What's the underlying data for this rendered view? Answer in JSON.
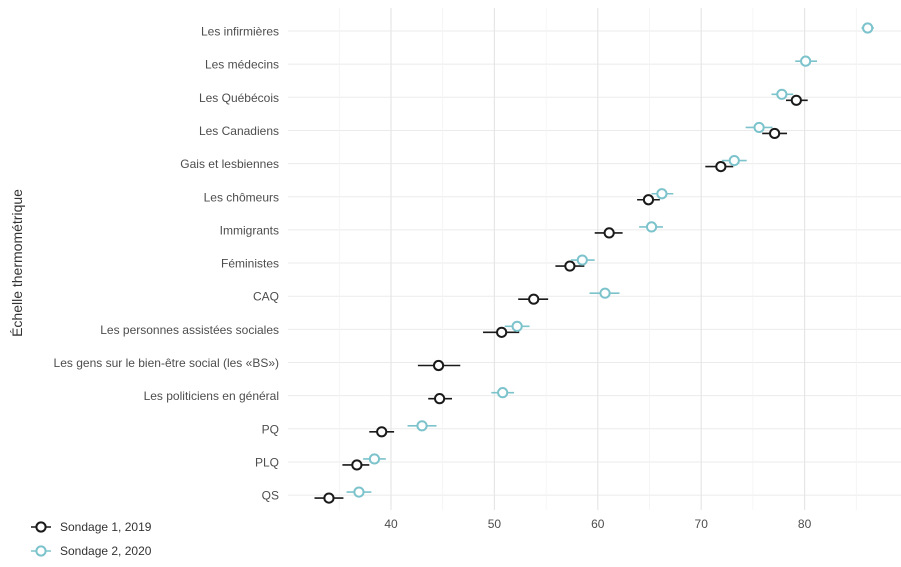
{
  "chart_data": {
    "type": "scatter",
    "variant": "dot-plot with horizontal error bars",
    "ylabel": "Échelle thermométrique",
    "xlabel": "",
    "xlim": [
      32,
      88
    ],
    "xticks": [
      40,
      50,
      60,
      70,
      80
    ],
    "grid": true,
    "legend_position": "bottom-left",
    "categories": [
      "Les infirmières",
      "Les médecins",
      "Les Québécois",
      "Les Canadiens",
      "Gais et lesbiennes",
      "Les chômeurs",
      "Immigrants",
      "Féministes",
      "CAQ",
      "Les personnes assistées sociales",
      "Les gens sur le bien-être social (les «BS»)",
      "Les politiciens en général",
      "PQ",
      "PLQ",
      "QS"
    ],
    "series": [
      {
        "name": "Sondage 1, 2019",
        "color": "#1a1a1a",
        "values": [
          null,
          null,
          79.2,
          77.1,
          71.9,
          64.9,
          61.1,
          57.3,
          53.8,
          50.7,
          44.6,
          44.7,
          39.1,
          36.7,
          34.0
        ],
        "ci_low": [
          null,
          null,
          78.2,
          75.9,
          70.4,
          63.8,
          59.7,
          55.9,
          52.3,
          48.9,
          42.6,
          43.6,
          37.9,
          35.3,
          32.6
        ],
        "ci_high": [
          null,
          null,
          80.3,
          78.3,
          73.1,
          66.0,
          62.4,
          58.7,
          55.2,
          52.4,
          46.7,
          45.9,
          40.3,
          37.9,
          35.4
        ]
      },
      {
        "name": "Sondage 2, 2020",
        "color": "#7cc3cc",
        "values": [
          86.1,
          80.1,
          77.8,
          75.6,
          73.2,
          66.2,
          65.2,
          58.5,
          60.7,
          52.2,
          null,
          50.8,
          43.0,
          38.4,
          36.9
        ],
        "ci_low": [
          85.5,
          79.1,
          76.8,
          74.3,
          72.0,
          65.2,
          64.0,
          57.4,
          59.2,
          51.0,
          null,
          49.7,
          41.6,
          37.3,
          35.7
        ],
        "ci_high": [
          86.7,
          81.2,
          78.9,
          76.9,
          74.4,
          67.3,
          66.3,
          59.7,
          62.1,
          53.4,
          null,
          51.9,
          44.4,
          39.5,
          38.1
        ]
      }
    ]
  }
}
